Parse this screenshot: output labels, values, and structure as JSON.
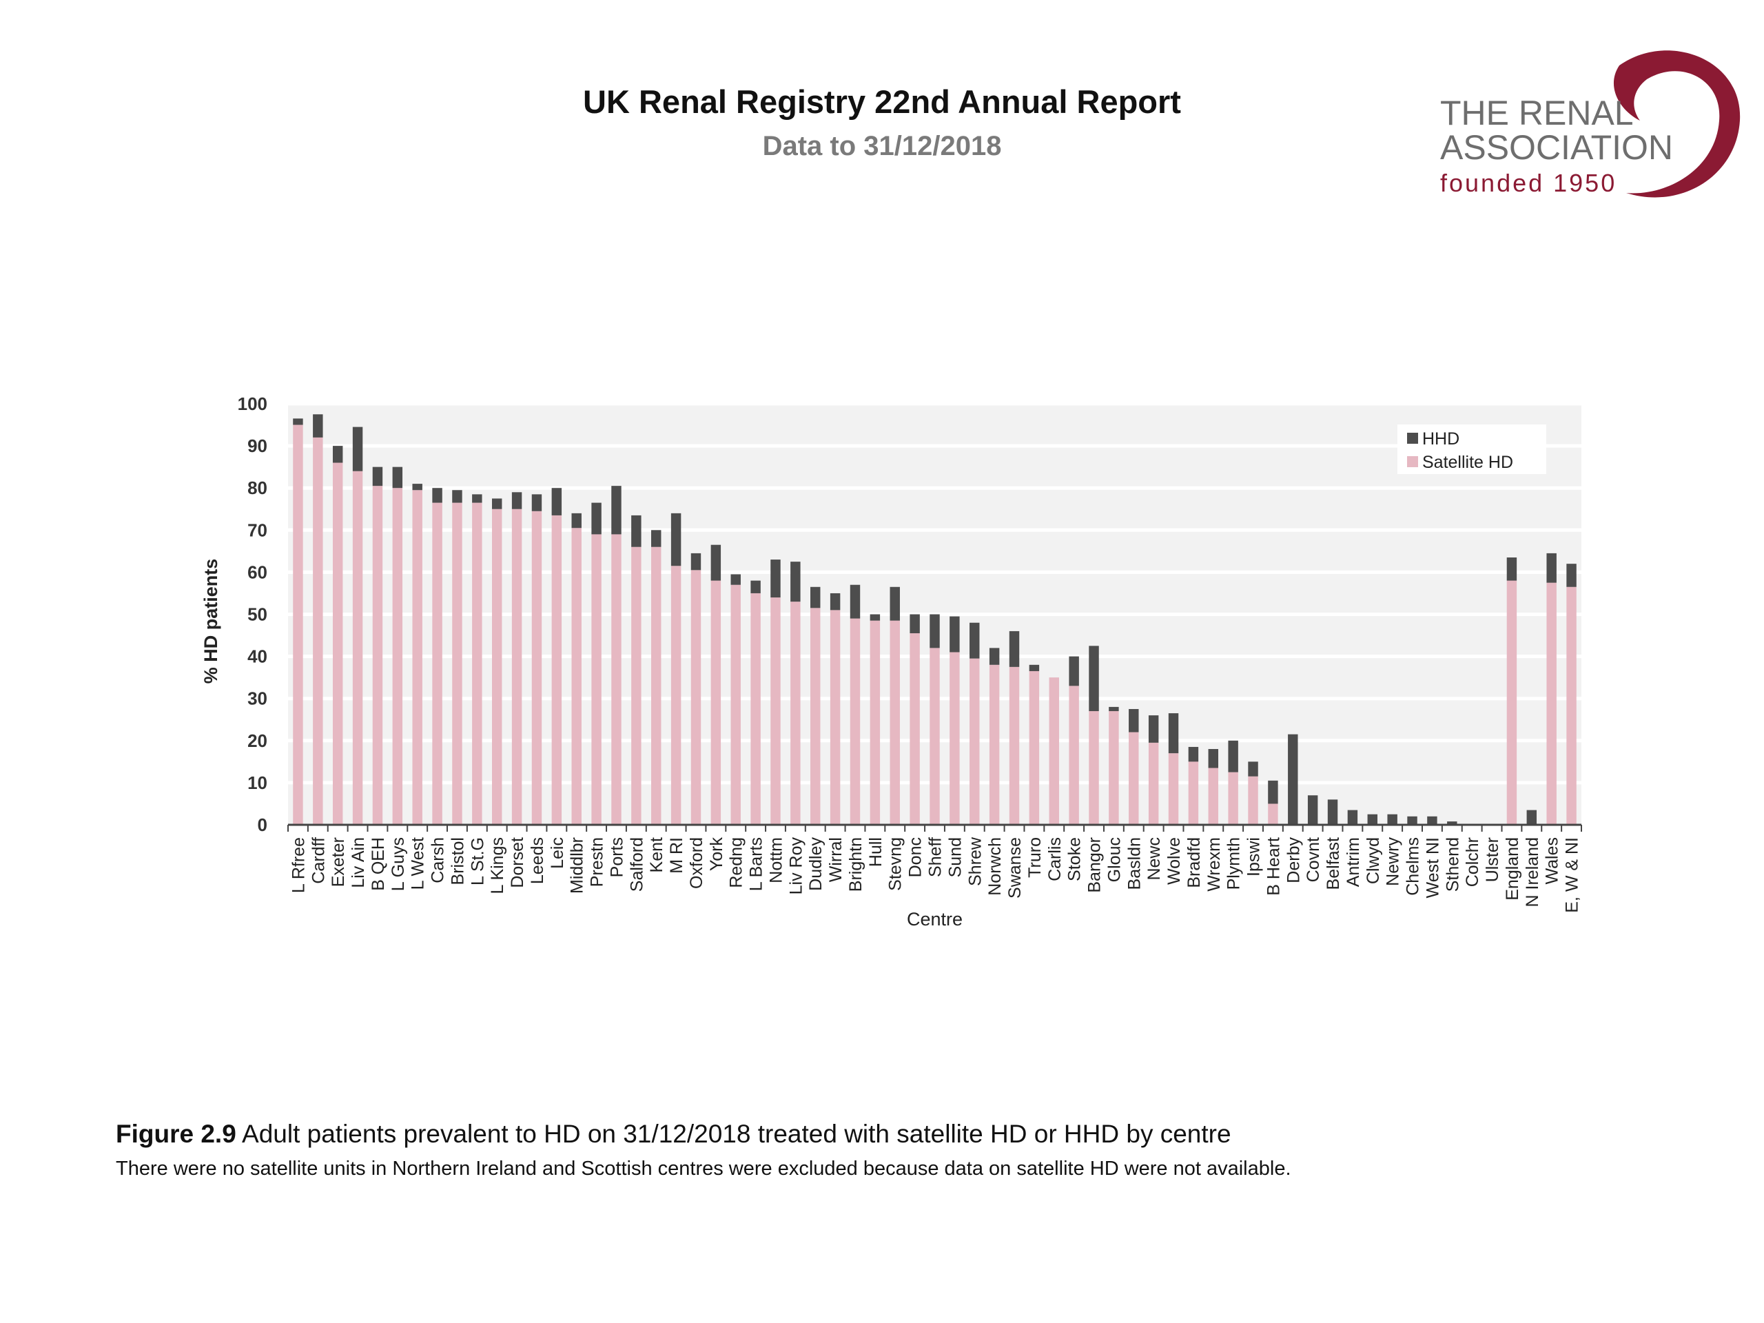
{
  "header": {
    "title": "UK Renal Registry 22nd Annual Report",
    "subtitle": "Data to 31/12/2018"
  },
  "logo": {
    "line1": "THE RENAL",
    "line2": "ASSOCIATION",
    "line3": "founded 1950",
    "accent_color": "#8b1a33"
  },
  "caption": {
    "figure_label": "Figure 2.9",
    "text": " Adult patients prevalent to HD on 31/12/2018 treated with satellite HD or HHD by centre",
    "note": "There were no satellite units in Northern Ireland and Scottish centres were excluded because data on satellite HD were not available."
  },
  "chart_data": {
    "type": "bar",
    "stacked": true,
    "title": "",
    "xlabel": "Centre",
    "ylabel": "% HD patients",
    "ylim": [
      0,
      100
    ],
    "yticks": [
      0,
      10,
      20,
      30,
      40,
      50,
      60,
      70,
      80,
      90,
      100
    ],
    "grid": true,
    "legend_position": "top-right",
    "categories": [
      "L Rfree",
      "Cardff",
      "Exeter",
      "Liv Ain",
      "B QEH",
      "L Guys",
      "L West",
      "Carsh",
      "Bristol",
      "L St.G",
      "L Kings",
      "Dorset",
      "Leeds",
      "Leic",
      "Middlbr",
      "Prestn",
      "Ports",
      "Salford",
      "Kent",
      "M RI",
      "Oxford",
      "York",
      "Redng",
      "L Barts",
      "Nottm",
      "Liv Roy",
      "Dudley",
      "Wirral",
      "Brightn",
      "Hull",
      "Stevng",
      "Donc",
      "Sheff",
      "Sund",
      "Shrew",
      "Norwch",
      "Swanse",
      "Truro",
      "Carlis",
      "Stoke",
      "Bangor",
      "Glouc",
      "Basldn",
      "Newc",
      "Wolve",
      "Bradfd",
      "Wrexm",
      "Plymth",
      "Ipswi",
      "B Heart",
      "Derby",
      "Covnt",
      "Belfast",
      "Antrim",
      "Clwyd",
      "Newry",
      "Chelms",
      "West NI",
      "Sthend",
      "Colchr",
      "Ulster",
      "England",
      "N Ireland",
      "Wales",
      "E, W & NI"
    ],
    "series": [
      {
        "name": "Satellite HD",
        "color": "#e6b8c2",
        "values": [
          95,
          92,
          86,
          84,
          80.5,
          80,
          79.5,
          76.5,
          76.5,
          76.5,
          75,
          75,
          74.5,
          73.5,
          70.5,
          69,
          69,
          66,
          66,
          61.5,
          60.5,
          58,
          57,
          55,
          54,
          53,
          51.5,
          51,
          49,
          48.5,
          48.5,
          45.5,
          42,
          41,
          39.5,
          38,
          37.5,
          36.5,
          35,
          33,
          27,
          27,
          22,
          19.5,
          17,
          15,
          13.5,
          12.5,
          11.5,
          5,
          0,
          0,
          0,
          0,
          0,
          0,
          0,
          0,
          0,
          0,
          0,
          58,
          0,
          57.5,
          56.5
        ]
      },
      {
        "name": "HHD",
        "color": "#4d4d4d",
        "values": [
          1.5,
          5.5,
          4,
          10.5,
          4.5,
          5,
          1.5,
          3.5,
          3,
          2,
          2.5,
          4,
          4,
          6.5,
          3.5,
          7.5,
          11.5,
          7.5,
          4,
          12.5,
          4,
          8.5,
          2.5,
          3,
          9,
          9.5,
          5,
          4,
          8,
          1.5,
          8,
          4.5,
          8,
          8.5,
          8.5,
          4,
          8.5,
          1.5,
          0,
          7,
          15.5,
          1,
          5.5,
          6.5,
          9.5,
          3.5,
          4.5,
          7.5,
          3.5,
          5.5,
          21.5,
          7,
          6,
          3.5,
          2.5,
          2.5,
          2,
          2,
          0.8,
          0,
          0,
          5.5,
          3.5,
          7,
          5.5
        ]
      }
    ],
    "legend": [
      "HHD",
      "Satellite HD"
    ]
  }
}
